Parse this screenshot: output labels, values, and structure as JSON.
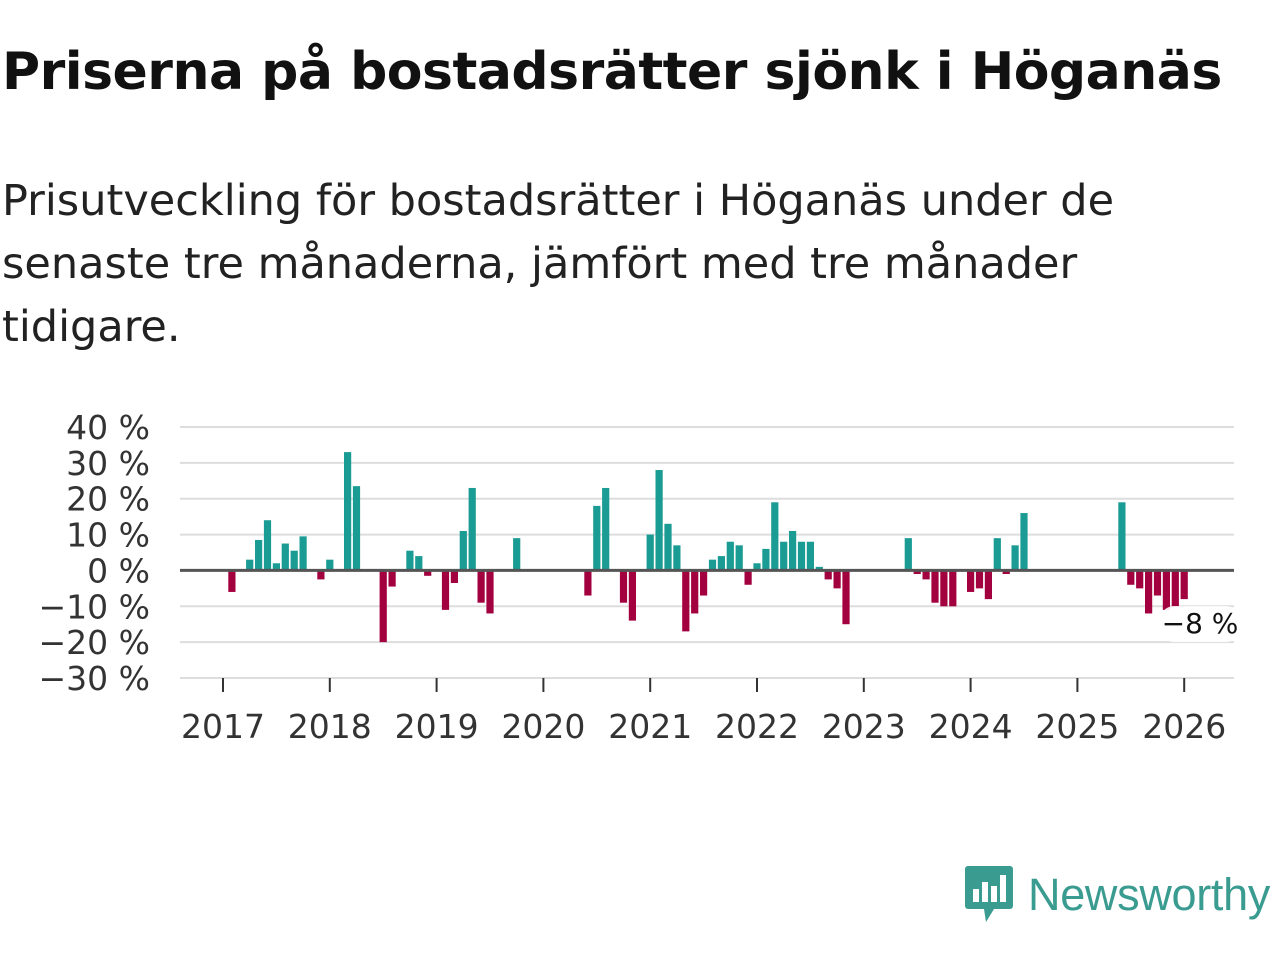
{
  "header": {
    "title": "Priserna på bostadsrätter sjönk i Höganäs",
    "subtitle": "Prisutveckling för bostadsrätter i Höganäs under de senaste tre månaderna, jämfört med tre månader tidigare."
  },
  "brand": {
    "name": "Newsworthy",
    "icon": "newsworthy-logo-icon"
  },
  "colors": {
    "positive": "#1a9b93",
    "negative": "#a3003f",
    "zero_line": "#555555",
    "grid": "#dddddd",
    "brand": "#3a9b90"
  },
  "chart_data": {
    "type": "bar",
    "title": "Priserna på bostadsrätter sjönk i Höganäs",
    "xlabel": "",
    "ylabel": "",
    "ylim": [
      -30,
      40
    ],
    "yticks": [
      40,
      30,
      20,
      10,
      0,
      -10,
      -20,
      -30
    ],
    "ytick_labels": [
      "40 %",
      "30 %",
      "20 %",
      "10 %",
      "0 %",
      "−10 %",
      "−20 %",
      "−30 %"
    ],
    "xticks": [
      "2017",
      "2018",
      "2019",
      "2020",
      "2021",
      "2022",
      "2023",
      "2024",
      "2025",
      "2026"
    ],
    "x_start": "2017-01",
    "x_end": "2026-04",
    "grid": true,
    "annotation": {
      "label": "−8 %",
      "date": "2026-03",
      "value": -8
    },
    "series": [
      {
        "name": "Prisutveckling",
        "unit": "%",
        "points": [
          {
            "date": "2017-02",
            "value": -6
          },
          {
            "date": "2017-04",
            "value": 3
          },
          {
            "date": "2017-05",
            "value": 8.5
          },
          {
            "date": "2017-06",
            "value": 14
          },
          {
            "date": "2017-07",
            "value": 2
          },
          {
            "date": "2017-08",
            "value": 7.5
          },
          {
            "date": "2017-09",
            "value": 5.5
          },
          {
            "date": "2017-10",
            "value": 9.5
          },
          {
            "date": "2017-12",
            "value": -2.5
          },
          {
            "date": "2018-01",
            "value": 3
          },
          {
            "date": "2018-03",
            "value": 33
          },
          {
            "date": "2018-04",
            "value": 23.5
          },
          {
            "date": "2018-07",
            "value": -20
          },
          {
            "date": "2018-08",
            "value": -4.5
          },
          {
            "date": "2018-10",
            "value": 5.5
          },
          {
            "date": "2018-11",
            "value": 4
          },
          {
            "date": "2018-12",
            "value": -1.5
          },
          {
            "date": "2019-02",
            "value": -11
          },
          {
            "date": "2019-03",
            "value": -3.5
          },
          {
            "date": "2019-04",
            "value": 11
          },
          {
            "date": "2019-05",
            "value": 23
          },
          {
            "date": "2019-06",
            "value": -9
          },
          {
            "date": "2019-07",
            "value": -12
          },
          {
            "date": "2019-10",
            "value": 9
          },
          {
            "date": "2020-06",
            "value": -7
          },
          {
            "date": "2020-07",
            "value": 18
          },
          {
            "date": "2020-08",
            "value": 23
          },
          {
            "date": "2020-10",
            "value": -9
          },
          {
            "date": "2020-11",
            "value": -14
          },
          {
            "date": "2021-01",
            "value": 10
          },
          {
            "date": "2021-02",
            "value": 28
          },
          {
            "date": "2021-03",
            "value": 13
          },
          {
            "date": "2021-04",
            "value": 7
          },
          {
            "date": "2021-05",
            "value": -17
          },
          {
            "date": "2021-06",
            "value": -12
          },
          {
            "date": "2021-07",
            "value": -7
          },
          {
            "date": "2021-08",
            "value": 3
          },
          {
            "date": "2021-09",
            "value": 4
          },
          {
            "date": "2021-10",
            "value": 8
          },
          {
            "date": "2021-11",
            "value": 7
          },
          {
            "date": "2021-12",
            "value": -4
          },
          {
            "date": "2022-01",
            "value": 2
          },
          {
            "date": "2022-02",
            "value": 6
          },
          {
            "date": "2022-03",
            "value": 19
          },
          {
            "date": "2022-04",
            "value": 8
          },
          {
            "date": "2022-05",
            "value": 11
          },
          {
            "date": "2022-06",
            "value": 8
          },
          {
            "date": "2022-07",
            "value": 8
          },
          {
            "date": "2022-08",
            "value": 1
          },
          {
            "date": "2022-09",
            "value": -2.5
          },
          {
            "date": "2022-10",
            "value": -5
          },
          {
            "date": "2022-11",
            "value": -15
          },
          {
            "date": "2023-06",
            "value": 9
          },
          {
            "date": "2023-07",
            "value": -1
          },
          {
            "date": "2023-08",
            "value": -2.5
          },
          {
            "date": "2023-09",
            "value": -9
          },
          {
            "date": "2023-10",
            "value": -10
          },
          {
            "date": "2023-11",
            "value": -10
          },
          {
            "date": "2024-01",
            "value": -6
          },
          {
            "date": "2024-02",
            "value": -5
          },
          {
            "date": "2024-03",
            "value": -8
          },
          {
            "date": "2024-04",
            "value": 9
          },
          {
            "date": "2024-05",
            "value": -1
          },
          {
            "date": "2024-06",
            "value": 7
          },
          {
            "date": "2024-07",
            "value": 16
          },
          {
            "date": "2025-06",
            "value": 19
          },
          {
            "date": "2025-07",
            "value": -4
          },
          {
            "date": "2025-08",
            "value": -5
          },
          {
            "date": "2025-09",
            "value": -12
          },
          {
            "date": "2025-10",
            "value": -7
          },
          {
            "date": "2025-11",
            "value": -11
          },
          {
            "date": "2025-12",
            "value": -10
          },
          {
            "date": "2026-01",
            "value": -8
          }
        ]
      }
    ]
  }
}
